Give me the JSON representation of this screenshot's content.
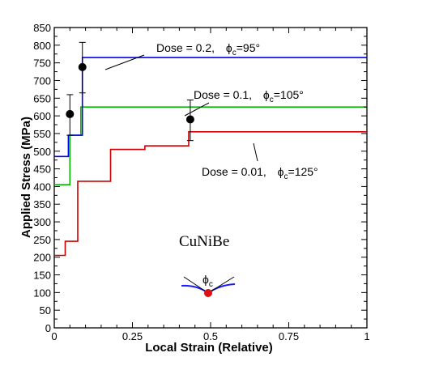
{
  "chart_data": {
    "type": "line",
    "xlabel": "Local Strain (Relative)",
    "ylabel": "Applied Stress (MPa)",
    "xlim": [
      0,
      1
    ],
    "ylim": [
      0,
      850
    ],
    "x_ticks": [
      0,
      0.25,
      0.5,
      0.75,
      1
    ],
    "x_tick_labels": [
      "0",
      "0.25",
      "0.5",
      "0.75",
      "1"
    ],
    "y_ticks": [
      0,
      50,
      100,
      150,
      200,
      250,
      300,
      350,
      400,
      450,
      500,
      550,
      600,
      650,
      700,
      750,
      800,
      850
    ],
    "y_tick_labels": [
      "0",
      "50",
      "100",
      "150",
      "200",
      "250",
      "300",
      "350",
      "400",
      "450",
      "500",
      "550",
      "600",
      "650",
      "700",
      "750",
      "800",
      "850"
    ],
    "grid": false,
    "series": [
      {
        "color": "#cc0000",
        "x": [
          0,
          0.035,
          0.035,
          0.075,
          0.075,
          0.18,
          0.18,
          0.29,
          0.29,
          0.43,
          0.43,
          1
        ],
        "y": [
          205,
          205,
          245,
          245,
          415,
          415,
          505,
          505,
          515,
          515,
          555,
          555
        ]
      },
      {
        "color": "#00bb00",
        "x": [
          0,
          0.05,
          0.05,
          0.085,
          0.085,
          1
        ],
        "y": [
          405,
          405,
          545,
          545,
          625,
          625
        ]
      },
      {
        "color": "#0000ee",
        "x": [
          0,
          0.045,
          0.045,
          0.075,
          0.075,
          0.09,
          0.09,
          1
        ],
        "y": [
          485,
          485,
          545,
          545,
          545,
          545,
          765,
          765
        ]
      }
    ],
    "points": [
      {
        "x": 0.05,
        "y": 605,
        "err_low": 545,
        "err_high": 660
      },
      {
        "x": 0.09,
        "y": 738,
        "err_low": 665,
        "err_high": 808
      },
      {
        "x": 0.435,
        "y": 590,
        "err_low": 530,
        "err_high": 645
      }
    ],
    "annotations": [
      {
        "id": "dose-02",
        "text": "Dose = 0.2,",
        "phi": "95°"
      },
      {
        "id": "dose-01",
        "text": "Dose = 0.1,",
        "phi": "105°"
      },
      {
        "id": "dose-001",
        "text": "Dose = 0.01,",
        "phi": "125°"
      }
    ],
    "phi_symbol": "ϕ",
    "phi_subscript": "c",
    "phi_equals": "=",
    "sample_label": "CuNiBe",
    "inset_label_symbol": "ϕ",
    "inset_label_subscript": "c"
  }
}
